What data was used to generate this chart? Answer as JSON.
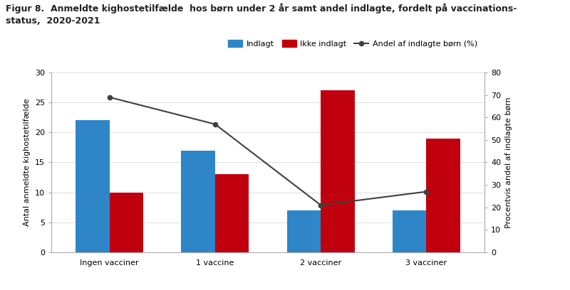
{
  "title_line1": "Figur 8.  Anmeldte kighostetilfælde  hos børn under 2 år samt andel indlagte, fordelt på vaccinations-",
  "title_line2": "status,  2020-2021",
  "categories": [
    "Ingen vacciner",
    "1 vaccine",
    "2 vacciner",
    "3 vacciner"
  ],
  "indlagt": [
    22,
    17,
    7,
    7
  ],
  "ikke_indlagt": [
    10,
    13,
    27,
    19
  ],
  "andel_pct": [
    69,
    57,
    21,
    27
  ],
  "bar_width": 0.32,
  "bar_color_indlagt": "#2E86C8",
  "bar_color_ikke_indlagt": "#C0000C",
  "line_color": "#404040",
  "ylabel_left": "Antal anmeldte kighostetilfælde",
  "ylabel_right": "Procentvis andel af indlagte børn",
  "ylim_left": [
    0,
    30
  ],
  "ylim_right": [
    0,
    80
  ],
  "yticks_left": [
    0,
    5,
    10,
    15,
    20,
    25,
    30
  ],
  "yticks_right": [
    0,
    10,
    20,
    30,
    40,
    50,
    60,
    70,
    80
  ],
  "legend_indlagt": "Indlagt",
  "legend_ikke_indlagt": "Ikke indlagt",
  "legend_andel": "Andel af indlagte børn (%)",
  "title_fontsize": 9,
  "axis_label_fontsize": 8,
  "tick_fontsize": 8,
  "legend_fontsize": 8
}
